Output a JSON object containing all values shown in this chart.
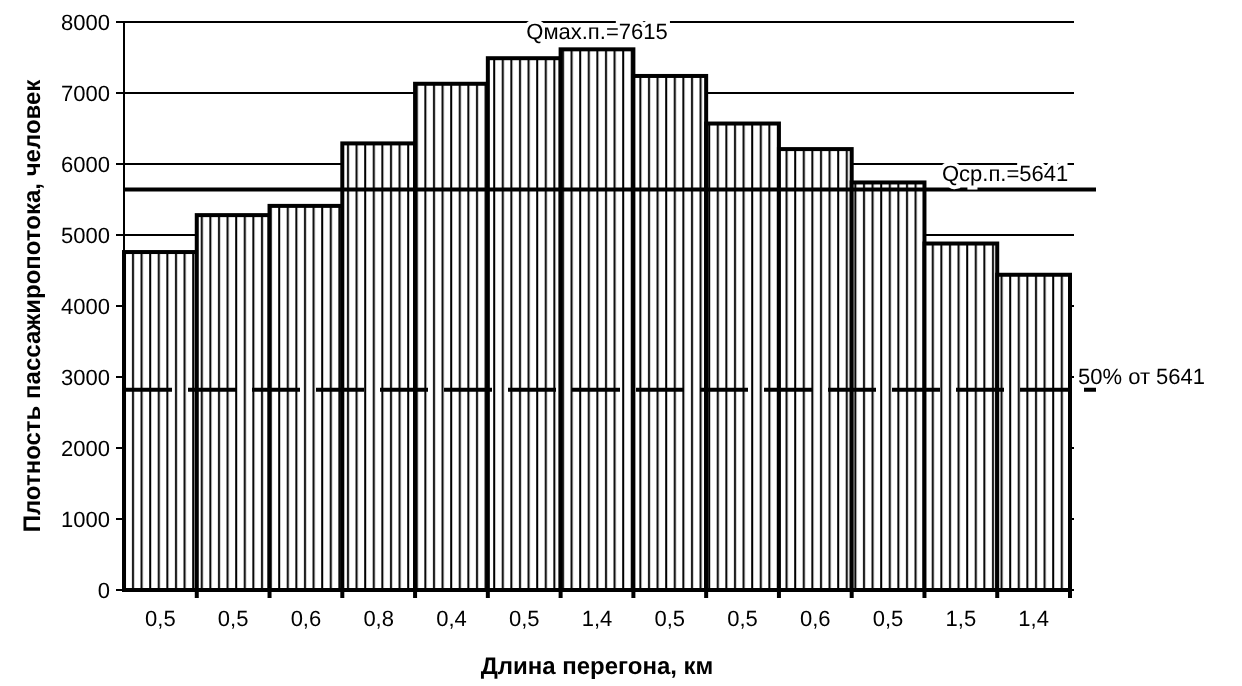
{
  "chart_data": {
    "type": "bar",
    "xlabel": "Длина перегона, км",
    "ylabel": "Плотность пассажиропотока, человек",
    "categories": [
      "0,5",
      "0,5",
      "0,6",
      "0,8",
      "0,4",
      "0,5",
      "1,4",
      "0,5",
      "0,5",
      "0,6",
      "0,5",
      "1,5",
      "1,4"
    ],
    "values": [
      4760,
      5280,
      5410,
      6290,
      7130,
      7490,
      7615,
      7240,
      6570,
      6210,
      5740,
      4880,
      4440
    ],
    "color": "#000000",
    "ylim": [
      0,
      8000
    ],
    "yticks": [
      0,
      1000,
      2000,
      3000,
      4000,
      5000,
      6000,
      7000,
      8000
    ],
    "grid": "y",
    "ref_lines": [
      {
        "axis": "y",
        "value": 5641,
        "label": "Qср.п.=5641",
        "line_style": "solid",
        "color": "#000000"
      },
      {
        "axis": "y",
        "value": 2820.5,
        "label": "50% от 5641",
        "line_style": "dashed",
        "color": "#000000"
      }
    ],
    "annotations": [
      {
        "text": "Qмах.п.=7615",
        "x": "1,4",
        "y": 7615
      }
    ]
  }
}
